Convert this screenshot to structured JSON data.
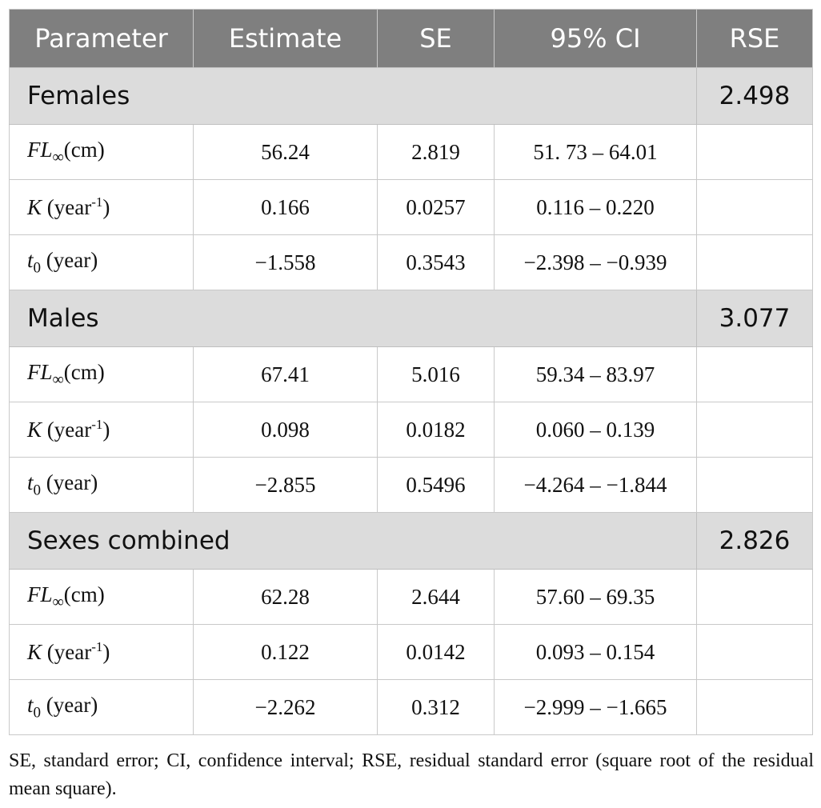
{
  "table": {
    "columns": [
      "Parameter",
      "Estimate",
      "SE",
      "95% CI",
      "RSE"
    ],
    "groups": [
      {
        "label": "Females",
        "rse": "2.498",
        "rows": [
          {
            "param": "FL∞(cm)",
            "estimate": "56.24",
            "se": "2.819",
            "ci": "51. 73 – 64.01"
          },
          {
            "param": "K (year-1)",
            "estimate": "0.166",
            "se": "0.0257",
            "ci": "0.116 – 0.220"
          },
          {
            "param": "t0 (year)",
            "estimate": "−1.558",
            "se": "0.3543",
            "ci": "−2.398 – −0.939"
          }
        ]
      },
      {
        "label": "Males",
        "rse": "3.077",
        "rows": [
          {
            "param": "FL∞(cm)",
            "estimate": "67.41",
            "se": "5.016",
            "ci": "59.34 – 83.97"
          },
          {
            "param": "K (year-1)",
            "estimate": "0.098",
            "se": "0.0182",
            "ci": "0.060 – 0.139"
          },
          {
            "param": "t0 (year)",
            "estimate": "−2.855",
            "se": "0.5496",
            "ci": "−4.264 – −1.844"
          }
        ]
      },
      {
        "label": "Sexes combined",
        "rse": "2.826",
        "rows": [
          {
            "param": "FL∞(cm)",
            "estimate": "62.28",
            "se": "2.644",
            "ci": "57.60 – 69.35"
          },
          {
            "param": "K (year-1)",
            "estimate": "0.122",
            "se": "0.0142",
            "ci": "0.093 – 0.154"
          },
          {
            "param": "t0 (year)",
            "estimate": "−2.262",
            "se": "0.312",
            "ci": "−2.999 – −1.665"
          }
        ]
      }
    ]
  },
  "footnote": "SE, standard error; CI, confidence interval; RSE, residual standard error (square root of the residual mean square).",
  "colors": {
    "header_bg": "#7f7f7f",
    "group_bg": "#dcdcdc",
    "border": "#c9c9c9"
  }
}
